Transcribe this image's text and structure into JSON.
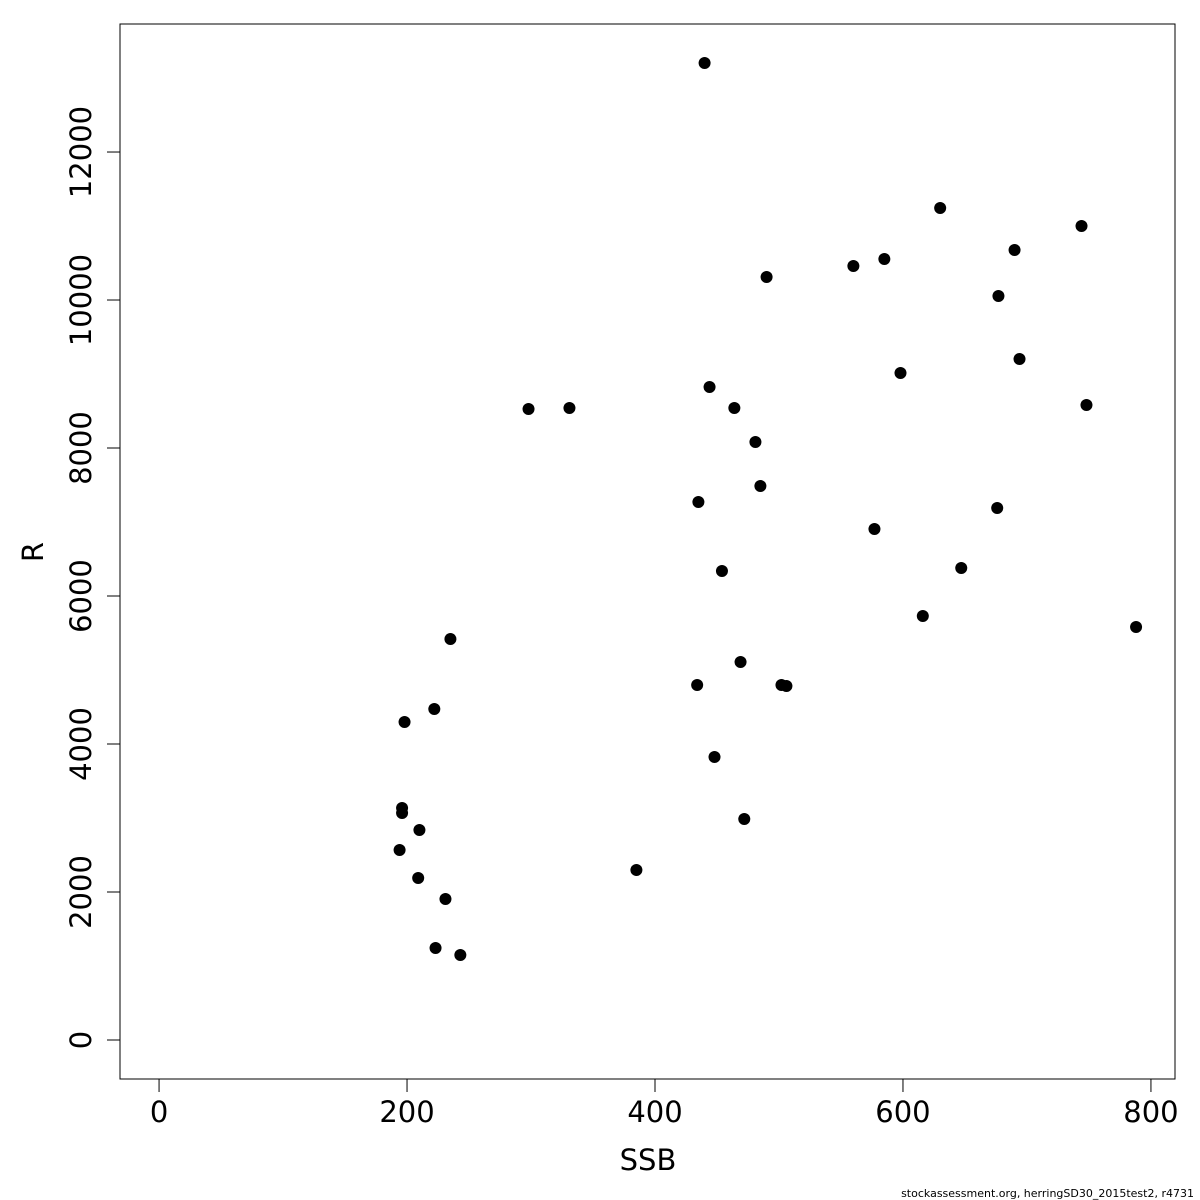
{
  "chart_data": {
    "type": "scatter",
    "x_label": "SSB",
    "y_label": "R",
    "footnote": "stockassessment.org, herringSD30_2015test2, r4731",
    "color": "#000000",
    "x": [
      440,
      630,
      744,
      690,
      585,
      560,
      490,
      677,
      694,
      598,
      444,
      748,
      331,
      298,
      464,
      481,
      485,
      435,
      676,
      577,
      454,
      647,
      616,
      788,
      235,
      469,
      434,
      502,
      506,
      222,
      198,
      448,
      196,
      196,
      210,
      472,
      194,
      385,
      209,
      231,
      223,
      243
    ],
    "values": [
      13203,
      11243,
      11000,
      10676,
      10554,
      10459,
      10311,
      10054,
      9203,
      9014,
      8824,
      8581,
      8541,
      8527,
      8541,
      8081,
      7486,
      7270,
      7189,
      6905,
      6338,
      6378,
      5730,
      5581,
      5419,
      5108,
      4797,
      4797,
      4784,
      4473,
      4297,
      3824,
      3135,
      3068,
      2838,
      2986,
      2568,
      2297,
      2189,
      1905,
      1243,
      1149
    ],
    "xlim": [
      -31.5,
      819.4
    ],
    "ylim": [
      -527,
      13730
    ],
    "xticks": [
      0,
      200,
      400,
      600,
      800
    ],
    "yticks": [
      0,
      2000,
      4000,
      6000,
      8000,
      10000,
      12000
    ]
  }
}
